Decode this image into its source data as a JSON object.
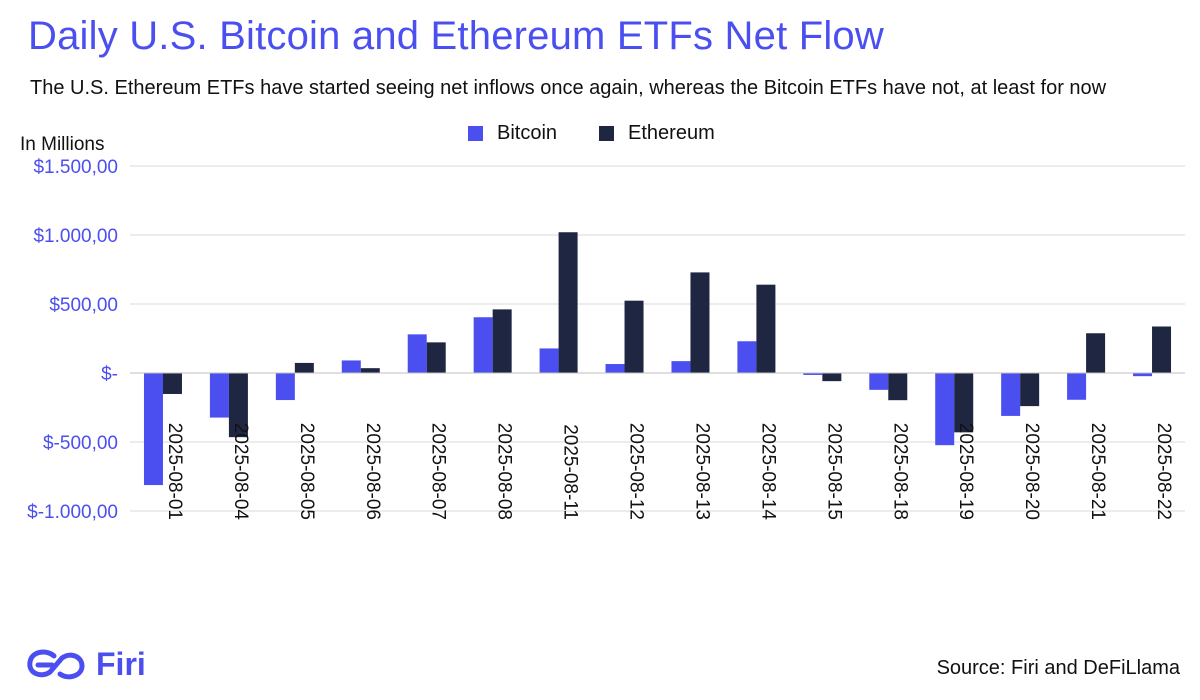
{
  "title": "Daily U.S. Bitcoin and Ethereum ETFs Net Flow",
  "subtitle": "The U.S. Ethereum ETFs have started seeing net inflows once again, whereas the Bitcoin ETFs have not, at least for now",
  "unit_label": "In Millions",
  "brand": {
    "name": "Firi"
  },
  "source": "Source: Firi and DeFiLlama",
  "colors": {
    "bitcoin": "#4b4ff0",
    "ethereum": "#1e2642",
    "accent": "#4b4ff0",
    "grid": "#d9d9d9"
  },
  "chart_data": {
    "type": "bar",
    "title": "Daily U.S. Bitcoin and Ethereum ETFs Net Flow",
    "ylabel": "In Millions",
    "xlabel": "",
    "ylim": [
      -1000,
      1500
    ],
    "yticks": [
      {
        "value": 1500,
        "label": "$1.500,00"
      },
      {
        "value": 1000,
        "label": "$1.000,00"
      },
      {
        "value": 500,
        "label": "$500,00"
      },
      {
        "value": 0,
        "label": "$-"
      },
      {
        "value": -500,
        "label": "$-500,00"
      },
      {
        "value": -1000,
        "label": "$-1.000,00"
      }
    ],
    "grid": true,
    "legend_position": "top-center",
    "categories": [
      "2025-08-01",
      "2025-08-04",
      "2025-08-05",
      "2025-08-06",
      "2025-08-07",
      "2025-08-08",
      "2025-08-11",
      "2025-08-12",
      "2025-08-13",
      "2025-08-14",
      "2025-08-15",
      "2025-08-18",
      "2025-08-19",
      "2025-08-20",
      "2025-08-21",
      "2025-08-22"
    ],
    "series": [
      {
        "name": "Bitcoin",
        "values": [
          -812,
          -323,
          -196,
          91,
          280,
          404,
          178,
          65,
          86,
          230,
          -14,
          -122,
          -523,
          -311,
          -194,
          -23
        ]
      },
      {
        "name": "Ethereum",
        "values": [
          -152,
          -465,
          73,
          35,
          222,
          461,
          1020,
          524,
          729,
          640,
          -59,
          -197,
          -430,
          -240,
          288,
          337
        ]
      }
    ]
  }
}
